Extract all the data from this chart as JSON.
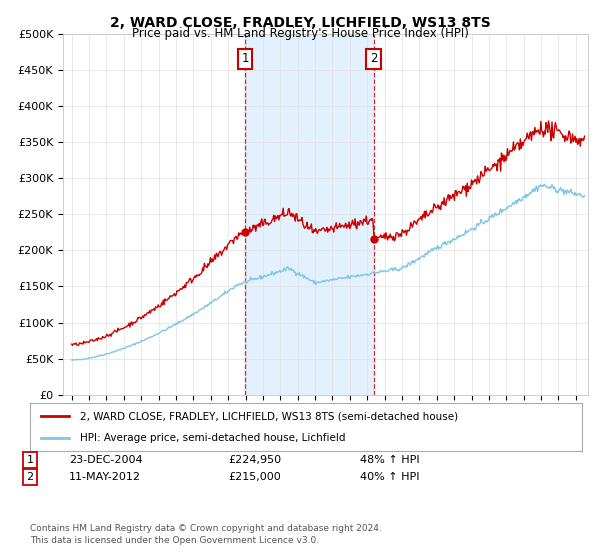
{
  "title": "2, WARD CLOSE, FRADLEY, LICHFIELD, WS13 8TS",
  "subtitle": "Price paid vs. HM Land Registry's House Price Index (HPI)",
  "ylabel_ticks": [
    "£0",
    "£50K",
    "£100K",
    "£150K",
    "£200K",
    "£250K",
    "£300K",
    "£350K",
    "£400K",
    "£450K",
    "£500K"
  ],
  "ytick_values": [
    0,
    50000,
    100000,
    150000,
    200000,
    250000,
    300000,
    350000,
    400000,
    450000,
    500000
  ],
  "xlim_start": 1994.5,
  "xlim_end": 2024.7,
  "ylim": [
    0,
    500000
  ],
  "sale1_date": 2004.98,
  "sale1_price": 224950,
  "sale2_date": 2012.37,
  "sale2_price": 215000,
  "hpi_color": "#7ec8e3",
  "price_color": "#cc0000",
  "shade_color": "#ddeeff",
  "legend_line1": "2, WARD CLOSE, FRADLEY, LICHFIELD, WS13 8TS (semi-detached house)",
  "legend_line2": "HPI: Average price, semi-detached house, Lichfield",
  "footer": "Contains HM Land Registry data © Crown copyright and database right 2024.\nThis data is licensed under the Open Government Licence v3.0.",
  "background_color": "#ffffff"
}
